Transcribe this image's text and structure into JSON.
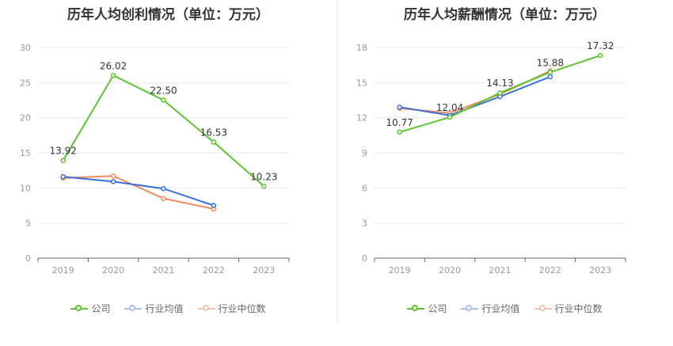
{
  "colors": {
    "company": "#5cc42c",
    "industry_avg": "#3b6fd8",
    "industry_median": "#ef8a5f"
  },
  "legend": {
    "company": "公司",
    "industry_avg": "行业均值",
    "industry_median": "行业中位数"
  },
  "chart_data": [
    {
      "type": "line",
      "title": "历年人均创利情况（单位：万元）",
      "categories": [
        "2019",
        "2020",
        "2021",
        "2022",
        "2023"
      ],
      "ylim": [
        0,
        30
      ],
      "yticks": [
        0,
        5,
        10,
        15,
        20,
        25,
        30
      ],
      "grid": true,
      "legend_position": "bottom",
      "series": [
        {
          "name": "公司",
          "key": "company",
          "values": [
            13.92,
            26.02,
            22.5,
            16.53,
            10.23
          ],
          "labels": [
            "13.92",
            "26.02",
            "22.50",
            "16.53",
            "10.23"
          ]
        },
        {
          "name": "行业均值",
          "key": "industry_avg",
          "values": [
            11.6,
            10.9,
            9.9,
            7.5,
            null
          ]
        },
        {
          "name": "行业中位数",
          "key": "industry_median",
          "values": [
            11.4,
            11.7,
            8.5,
            7.0,
            null
          ]
        }
      ]
    },
    {
      "type": "line",
      "title": "历年人均薪酬情况（单位：万元）",
      "categories": [
        "2019",
        "2020",
        "2021",
        "2022",
        "2023"
      ],
      "ylim": [
        0,
        18
      ],
      "yticks": [
        0,
        3,
        6,
        9,
        12,
        15,
        18
      ],
      "grid": true,
      "legend_position": "bottom",
      "series": [
        {
          "name": "公司",
          "key": "company",
          "values": [
            10.77,
            12.04,
            14.13,
            15.88,
            17.32
          ],
          "labels": [
            "10.77",
            "12.04",
            "14.13",
            "15.88",
            "17.32"
          ]
        },
        {
          "name": "行业均值",
          "key": "industry_avg",
          "values": [
            12.9,
            12.2,
            13.8,
            15.5,
            null
          ]
        },
        {
          "name": "行业中位数",
          "key": "industry_median",
          "values": [
            12.8,
            12.4,
            14.0,
            16.0,
            null
          ]
        }
      ]
    }
  ]
}
